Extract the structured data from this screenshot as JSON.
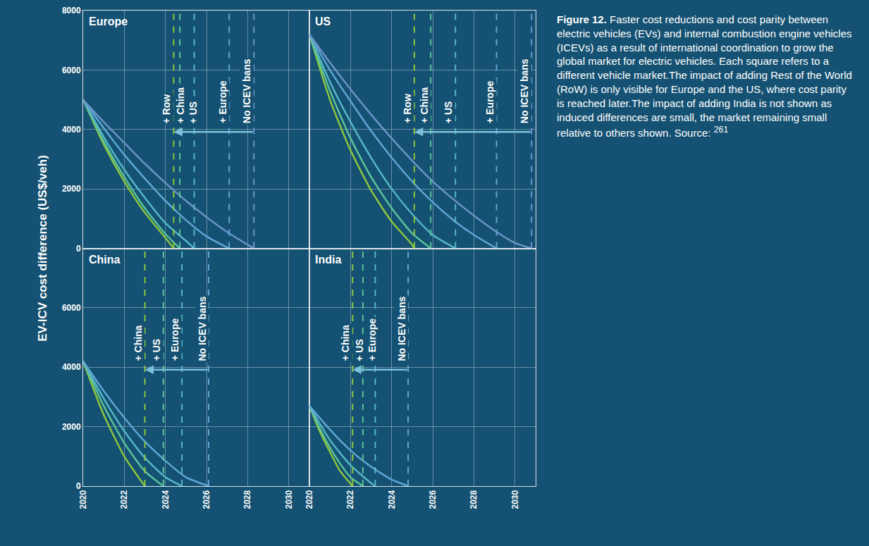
{
  "ylabel": "EV-ICV cost difference (US$/veh)",
  "caption": {
    "label": "Figure 12.",
    "text": "Faster cost reductions and cost parity between electric vehicles (EVs) and internal combustion engine vehicles (ICEVs) as a result of international coordination to grow the global market for electric vehicles. Each square refers to a different vehicle market.The impact of adding Rest of the World (RoW) is only visible for Europe and the US, where cost parity is reached later.The impact of adding India is not shown as induced differences are small, the market remaining small relative to others shown. Source:",
    "source": "261"
  },
  "chart_data": [
    {
      "type": "line",
      "title": "Europe",
      "xlim": [
        2020,
        2031
      ],
      "xticks": [
        2020,
        2022,
        2024,
        2026,
        2028,
        2030
      ],
      "ylim": [
        0,
        8000
      ],
      "yticks": [
        0,
        2000,
        4000,
        6000,
        8000
      ],
      "grid": true,
      "tick_labels": "y",
      "series": [
        {
          "name": "+ Row",
          "color": "#8dc63f",
          "x": [
            2020,
            2021,
            2022,
            2023,
            2024,
            2024.4
          ],
          "values": [
            5000,
            3500,
            2250,
            1200,
            350,
            0
          ]
        },
        {
          "name": "+ China",
          "color": "#5cc39a",
          "x": [
            2020,
            2021,
            2022,
            2023,
            2024,
            2024.7
          ],
          "values": [
            5000,
            3600,
            2400,
            1350,
            480,
            0
          ]
        },
        {
          "name": "+ US",
          "color": "#55b6c6",
          "x": [
            2020,
            2021,
            2022,
            2023,
            2024,
            2025,
            2025.4
          ],
          "values": [
            5000,
            3750,
            2650,
            1700,
            850,
            250,
            0
          ]
        },
        {
          "name": "+ Europe",
          "color": "#5fa6d4",
          "x": [
            2020,
            2021,
            2022,
            2023,
            2024,
            2025,
            2026,
            2027.1
          ],
          "values": [
            5000,
            4050,
            3150,
            2350,
            1600,
            950,
            400,
            0
          ]
        },
        {
          "name": "No ICEV bans",
          "color": "#6b93c8",
          "x": [
            2020,
            2021,
            2022,
            2023,
            2024,
            2025,
            2026,
            2027,
            2028,
            2028.3
          ],
          "values": [
            5000,
            4250,
            3550,
            2850,
            2200,
            1600,
            1050,
            550,
            120,
            0
          ]
        }
      ]
    },
    {
      "type": "line",
      "title": "US",
      "xlim": [
        2020,
        2031
      ],
      "xticks": [
        2020,
        2022,
        2024,
        2026,
        2028,
        2030
      ],
      "ylim": [
        0,
        8000
      ],
      "yticks": [
        0,
        2000,
        4000,
        6000,
        8000
      ],
      "grid": true,
      "tick_labels": false,
      "series": [
        {
          "name": "+ Row",
          "color": "#8dc63f",
          "x": [
            2020,
            2021,
            2022,
            2023,
            2024,
            2025,
            2025.1
          ],
          "values": [
            7200,
            5000,
            3300,
            1950,
            900,
            120,
            0
          ]
        },
        {
          "name": "+ China",
          "color": "#5cc39a",
          "x": [
            2020,
            2021,
            2022,
            2023,
            2024,
            2025,
            2025.9
          ],
          "values": [
            7200,
            5300,
            3700,
            2400,
            1350,
            500,
            0
          ]
        },
        {
          "name": "+ US",
          "color": "#55b6c6",
          "x": [
            2020,
            2021,
            2022,
            2023,
            2024,
            2025,
            2026,
            2027.1
          ],
          "values": [
            7200,
            5600,
            4250,
            3050,
            2000,
            1150,
            450,
            0
          ]
        },
        {
          "name": "+ Europe",
          "color": "#5fa6d4",
          "x": [
            2020,
            2021,
            2022,
            2023,
            2024,
            2025,
            2026,
            2027,
            2028,
            2029.1
          ],
          "values": [
            7200,
            6000,
            4950,
            3950,
            3050,
            2250,
            1550,
            950,
            450,
            0
          ]
        },
        {
          "name": "No ICEV bans",
          "color": "#6b93c8",
          "x": [
            2020,
            2021,
            2022,
            2023,
            2024,
            2025,
            2026,
            2027,
            2028,
            2029,
            2030,
            2030.8
          ],
          "values": [
            7200,
            6250,
            5350,
            4500,
            3700,
            2950,
            2250,
            1650,
            1100,
            600,
            180,
            0
          ]
        }
      ]
    },
    {
      "type": "line",
      "title": "China",
      "xlim": [
        2020,
        2031
      ],
      "xticks": [
        2020,
        2022,
        2024,
        2026,
        2028,
        2030
      ],
      "ylim": [
        0,
        8000
      ],
      "yticks": [
        0,
        2000,
        4000,
        6000
      ],
      "grid": true,
      "series": [
        {
          "name": "+ China",
          "color": "#8dc63f",
          "x": [
            2020,
            2021,
            2022,
            2023
          ],
          "values": [
            4200,
            2400,
            1000,
            0
          ]
        },
        {
          "name": "+ US",
          "color": "#5cc39a",
          "x": [
            2020,
            2021,
            2022,
            2023,
            2023.9
          ],
          "values": [
            4200,
            2700,
            1450,
            500,
            0
          ]
        },
        {
          "name": "+ Europe",
          "color": "#55b6c6",
          "x": [
            2020,
            2021,
            2022,
            2023,
            2024,
            2024.8
          ],
          "values": [
            4200,
            2950,
            1850,
            950,
            300,
            0
          ]
        },
        {
          "name": "No ICEV bans",
          "color": "#5fa6d4",
          "x": [
            2020,
            2021,
            2022,
            2023,
            2024,
            2025,
            2026.1
          ],
          "values": [
            4200,
            3200,
            2300,
            1500,
            850,
            300,
            0
          ]
        }
      ]
    },
    {
      "type": "line",
      "title": "India",
      "xlim": [
        2020,
        2031
      ],
      "xticks": [
        2020,
        2022,
        2024,
        2026,
        2028,
        2030
      ],
      "ylim": [
        0,
        8000
      ],
      "yticks": [
        0,
        2000,
        4000,
        6000
      ],
      "grid": true,
      "tick_labels": "x",
      "series": [
        {
          "name": "+ China",
          "color": "#8dc63f",
          "x": [
            2020,
            2020.5,
            2021,
            2021.5,
            2022.1
          ],
          "values": [
            2700,
            1850,
            1150,
            500,
            0
          ]
        },
        {
          "name": "+ US",
          "color": "#5cc39a",
          "x": [
            2020,
            2020.5,
            2021,
            2021.5,
            2022,
            2022.6
          ],
          "values": [
            2700,
            1950,
            1300,
            750,
            300,
            0
          ]
        },
        {
          "name": "+ Europe",
          "color": "#55b6c6",
          "x": [
            2020,
            2021,
            2022,
            2023,
            2023.2
          ],
          "values": [
            2700,
            1550,
            700,
            100,
            0
          ]
        },
        {
          "name": "No ICEV bans",
          "color": "#5fa6d4",
          "x": [
            2020,
            2021,
            2022,
            2023,
            2024,
            2024.8
          ],
          "values": [
            2700,
            1900,
            1200,
            650,
            220,
            0
          ]
        }
      ]
    }
  ]
}
